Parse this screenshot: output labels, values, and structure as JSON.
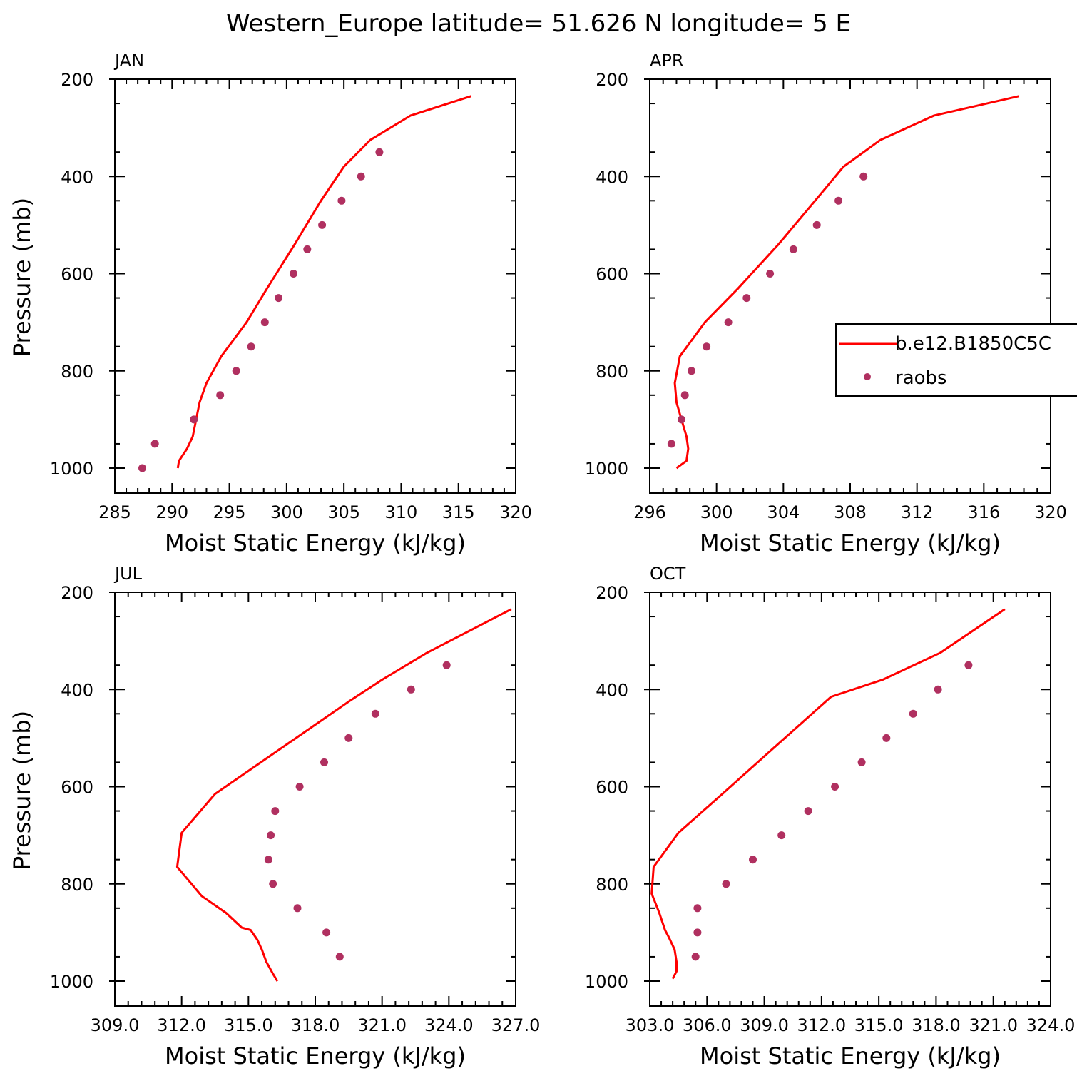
{
  "title": "Western_Europe  latitude= 51.626 N longitude= 5 E",
  "colors": {
    "model_line": "#ff0000",
    "obs_marker": "#b03060",
    "axis": "#000000",
    "background": "#ffffff"
  },
  "legend": {
    "entries": [
      {
        "label": "b.e12.B1850C5C",
        "type": "line"
      },
      {
        "label": "raobs",
        "type": "marker"
      }
    ]
  },
  "chart_data": [
    {
      "type": "line",
      "panel": "JAN",
      "xlabel": "Moist Static Energy (kJ/kg)",
      "ylabel": "Pressure (mb)",
      "xlim": [
        285,
        320
      ],
      "ylim": [
        1000,
        200
      ],
      "x_ticks": [
        285,
        290,
        295,
        300,
        305,
        310,
        315,
        320
      ],
      "x_tick_labels": [
        "285",
        "290",
        "295",
        "300",
        "305",
        "310",
        "315",
        "320"
      ],
      "y_ticks": [
        200,
        400,
        600,
        800,
        1000
      ],
      "y_tick_labels": [
        "200",
        "400",
        "600",
        "800",
        "1000"
      ],
      "series": [
        {
          "name": "b.e12.B1850C5C",
          "kind": "line",
          "x": [
            290.5,
            290.6,
            291.3,
            291.8,
            292.1,
            292.4,
            293.0,
            294.3,
            296.5,
            298.3,
            300.7,
            303.0,
            305.0,
            307.3,
            310.8,
            316.1
          ],
          "y": [
            1000,
            985,
            960,
            935,
            900,
            865,
            825,
            770,
            700,
            630,
            540,
            450,
            380,
            325,
            275,
            235
          ]
        },
        {
          "name": "raobs",
          "kind": "marker",
          "x": [
            287.4,
            288.5,
            291.9,
            294.2,
            295.6,
            296.9,
            298.1,
            299.3,
            300.6,
            301.8,
            303.1,
            304.8,
            306.5,
            308.1
          ],
          "y": [
            1000,
            950,
            900,
            850,
            800,
            750,
            700,
            650,
            600,
            550,
            500,
            450,
            400,
            350
          ]
        }
      ]
    },
    {
      "type": "line",
      "panel": "APR",
      "xlabel": "Moist Static Energy (kJ/kg)",
      "ylabel": "",
      "xlim": [
        296,
        320
      ],
      "ylim": [
        1000,
        200
      ],
      "x_ticks": [
        296,
        300,
        304,
        308,
        312,
        316,
        320
      ],
      "x_tick_labels": [
        "296",
        "300",
        "304",
        "308",
        "312",
        "316",
        "320"
      ],
      "y_ticks": [
        200,
        400,
        600,
        800,
        1000
      ],
      "y_tick_labels": [
        "200",
        "400",
        "600",
        "800",
        "1000"
      ],
      "series": [
        {
          "name": "b.e12.B1850C5C",
          "kind": "line",
          "x": [
            297.6,
            298.2,
            298.3,
            298.2,
            297.9,
            297.6,
            297.5,
            297.8,
            299.3,
            301.3,
            303.7,
            305.9,
            307.6,
            309.8,
            313.0,
            318.1
          ],
          "y": [
            1000,
            985,
            960,
            935,
            900,
            865,
            825,
            770,
            700,
            630,
            540,
            450,
            380,
            325,
            275,
            235
          ]
        },
        {
          "name": "raobs",
          "kind": "marker",
          "x": [
            297.3,
            297.9,
            298.1,
            298.5,
            299.4,
            300.7,
            301.8,
            303.2,
            304.6,
            306.0,
            307.3,
            308.8
          ],
          "y": [
            950,
            900,
            850,
            800,
            750,
            700,
            650,
            600,
            550,
            500,
            450,
            400
          ]
        }
      ]
    },
    {
      "type": "line",
      "panel": "JUL",
      "xlabel": "Moist Static Energy (kJ/kg)",
      "ylabel": "Pressure (mb)",
      "xlim": [
        309.0,
        327.0
      ],
      "ylim": [
        1000,
        200
      ],
      "x_ticks": [
        309.0,
        312.0,
        315.0,
        318.0,
        321.0,
        324.0,
        327.0
      ],
      "x_tick_labels": [
        "309.0",
        "312.0",
        "315.0",
        "318.0",
        "321.0",
        "324.0",
        "327.0"
      ],
      "y_ticks": [
        200,
        400,
        600,
        800,
        1000
      ],
      "y_tick_labels": [
        "200",
        "400",
        "600",
        "800",
        "1000"
      ],
      "series": [
        {
          "name": "b.e12.B1850C5C",
          "kind": "line",
          "x": [
            316.3,
            316.1,
            315.8,
            315.6,
            315.4,
            315.1,
            314.7,
            314.0,
            312.9,
            311.8,
            312.0,
            313.5,
            316.5,
            319.5,
            321.0,
            323.0,
            326.8
          ],
          "y": [
            1000,
            985,
            960,
            935,
            915,
            895,
            890,
            860,
            825,
            765,
            695,
            615,
            520,
            425,
            380,
            325,
            235
          ]
        },
        {
          "name": "raobs",
          "kind": "marker",
          "x": [
            319.1,
            318.5,
            317.2,
            316.1,
            315.9,
            316.0,
            316.2,
            317.3,
            318.4,
            319.5,
            320.7,
            322.3,
            323.9
          ],
          "y": [
            950,
            900,
            850,
            800,
            750,
            700,
            650,
            600,
            550,
            500,
            450,
            400,
            350
          ]
        }
      ]
    },
    {
      "type": "line",
      "panel": "OCT",
      "xlabel": "Moist Static Energy (kJ/kg)",
      "ylabel": "",
      "xlim": [
        303.0,
        324.0
      ],
      "ylim": [
        1000,
        200
      ],
      "x_ticks": [
        303.0,
        306.0,
        309.0,
        312.0,
        315.0,
        318.0,
        321.0,
        324.0
      ],
      "x_tick_labels": [
        "303.0",
        "306.0",
        "309.0",
        "312.0",
        "315.0",
        "318.0",
        "321.0",
        "324.0"
      ],
      "y_ticks": [
        200,
        400,
        600,
        800,
        1000
      ],
      "y_tick_labels": [
        "200",
        "400",
        "600",
        "800",
        "1000"
      ],
      "series": [
        {
          "name": "b.e12.B1850C5C",
          "kind": "line",
          "x": [
            304.2,
            304.4,
            304.4,
            304.3,
            304.0,
            303.8,
            303.5,
            303.1,
            303.2,
            304.5,
            306.8,
            309.5,
            312.5,
            315.2,
            318.2,
            321.6
          ],
          "y": [
            995,
            980,
            960,
            935,
            910,
            895,
            860,
            820,
            765,
            695,
            615,
            520,
            415,
            380,
            325,
            235
          ]
        },
        {
          "name": "raobs",
          "kind": "marker",
          "x": [
            305.4,
            305.5,
            305.5,
            307.0,
            308.4,
            309.9,
            311.3,
            312.7,
            314.1,
            315.4,
            316.8,
            318.1,
            319.7
          ],
          "y": [
            950,
            900,
            850,
            800,
            750,
            700,
            650,
            600,
            550,
            500,
            450,
            400,
            350
          ]
        }
      ]
    }
  ]
}
